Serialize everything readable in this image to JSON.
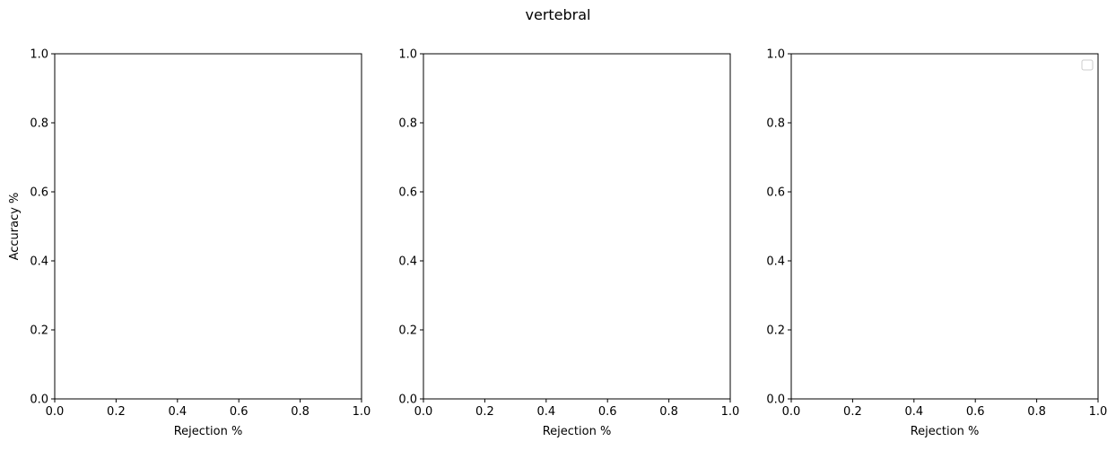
{
  "figure": {
    "suptitle": "vertebral"
  },
  "chart_data": [
    {
      "type": "line",
      "title": "",
      "xlabel": "Rejection %",
      "ylabel": "Accuracy %",
      "xlim": [
        0.0,
        1.0
      ],
      "ylim": [
        0.0,
        1.0
      ],
      "xticks": [
        "0.0",
        "0.2",
        "0.4",
        "0.6",
        "0.8",
        "1.0"
      ],
      "yticks": [
        "0.0",
        "0.2",
        "0.4",
        "0.6",
        "0.8",
        "1.0"
      ],
      "series": [],
      "grid": false,
      "legend": false
    },
    {
      "type": "line",
      "title": "",
      "xlabel": "Rejection %",
      "ylabel": "",
      "xlim": [
        0.0,
        1.0
      ],
      "ylim": [
        0.0,
        1.0
      ],
      "xticks": [
        "0.0",
        "0.2",
        "0.4",
        "0.6",
        "0.8",
        "1.0"
      ],
      "yticks": [
        "0.0",
        "0.2",
        "0.4",
        "0.6",
        "0.8",
        "1.0"
      ],
      "series": [],
      "grid": false,
      "legend": false
    },
    {
      "type": "line",
      "title": "",
      "xlabel": "Rejection %",
      "ylabel": "",
      "xlim": [
        0.0,
        1.0
      ],
      "ylim": [
        0.0,
        1.0
      ],
      "xticks": [
        "0.0",
        "0.2",
        "0.4",
        "0.6",
        "0.8",
        "1.0"
      ],
      "yticks": [
        "0.0",
        "0.2",
        "0.4",
        "0.6",
        "0.8",
        "1.0"
      ],
      "series": [],
      "grid": false,
      "legend": true,
      "legend_placement": "top-right"
    }
  ]
}
